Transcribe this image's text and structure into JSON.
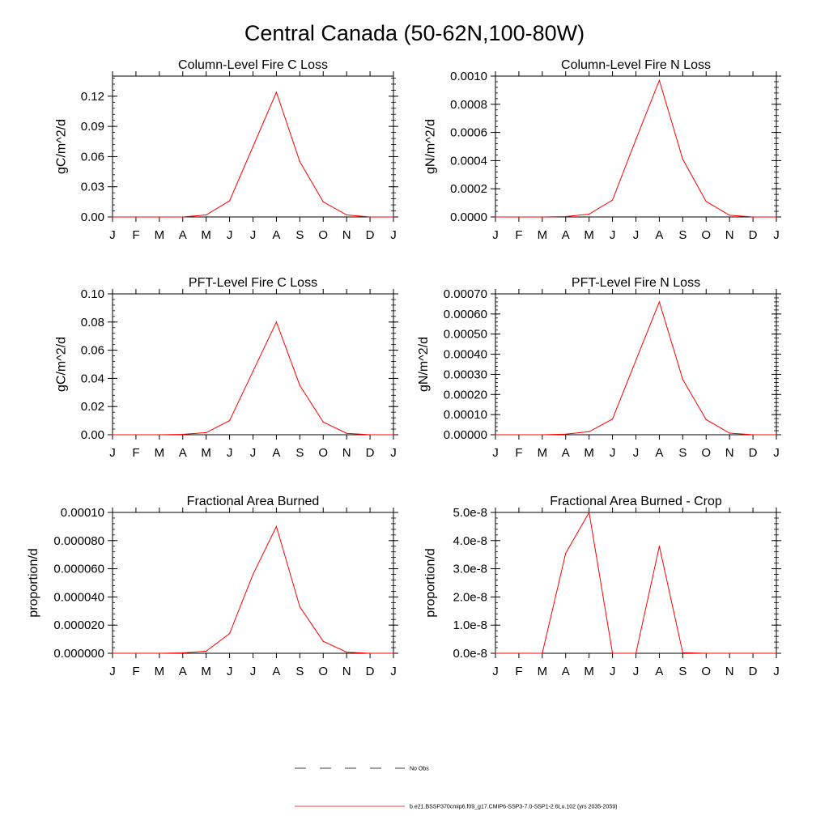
{
  "title": "Central Canada (50-62N,100-80W)",
  "months": [
    "J",
    "F",
    "M",
    "A",
    "M",
    "J",
    "J",
    "A",
    "S",
    "O",
    "N",
    "D",
    "J"
  ],
  "colors": {
    "series": "#ff0000",
    "obs": "#000000",
    "axes": "#000000"
  },
  "legend": {
    "obs_label": "No Obs",
    "model_label": "b.e21.BSSP370cmip6.f09_g17.CMIP6-SSP3-7.0-SSP1-2.6Lu.102 (yrs 2035-2059)"
  },
  "chart_data": [
    {
      "type": "line",
      "title": "Column-Level Fire C Loss",
      "ylabel": "gC/m^2/d",
      "ylim": [
        0,
        0.14
      ],
      "yticks": [
        0,
        0.03,
        0.06,
        0.09,
        0.12
      ],
      "ytick_labels": [
        "0.00",
        "0.03",
        "0.06",
        "0.09",
        "0.12"
      ],
      "yminor": 0.006,
      "series": [
        {
          "values": [
            0,
            0,
            0,
            0,
            0.002,
            0.016,
            0.07,
            0.124,
            0.055,
            0.015,
            0.002,
            0,
            0
          ]
        }
      ]
    },
    {
      "type": "line",
      "title": "Column-Level Fire N Loss",
      "ylabel": "gN/m^2/d",
      "ylim": [
        0,
        0.001
      ],
      "yticks": [
        0,
        0.0002,
        0.0004,
        0.0006,
        0.0008,
        0.001
      ],
      "ytick_labels": [
        "0.0000",
        "0.0002",
        "0.0004",
        "0.0006",
        "0.0008",
        "0.0010"
      ],
      "yminor": 4e-05,
      "series": [
        {
          "values": [
            0,
            0,
            0,
            3e-06,
            2e-05,
            0.00012,
            0.00055,
            0.00097,
            0.00041,
            0.00011,
            1.2e-05,
            0,
            0
          ]
        }
      ]
    },
    {
      "type": "line",
      "title": "PFT-Level Fire C Loss",
      "ylabel": "gC/m^2/d",
      "ylim": [
        0,
        0.1
      ],
      "yticks": [
        0,
        0.02,
        0.04,
        0.06,
        0.08,
        0.1
      ],
      "ytick_labels": [
        "0.00",
        "0.02",
        "0.04",
        "0.06",
        "0.08",
        "0.10"
      ],
      "yminor": 0.004,
      "series": [
        {
          "values": [
            0,
            0,
            0,
            0.0003,
            0.0015,
            0.01,
            0.045,
            0.08,
            0.035,
            0.009,
            0.001,
            0,
            0
          ]
        }
      ]
    },
    {
      "type": "line",
      "title": "PFT-Level Fire N Loss",
      "ylabel": "gN/m^2/d",
      "ylim": [
        0,
        0.0007
      ],
      "yticks": [
        0,
        0.0001,
        0.0002,
        0.0003,
        0.0004,
        0.0005,
        0.0006,
        0.0007
      ],
      "ytick_labels": [
        "0.00000",
        "0.00010",
        "0.00020",
        "0.00030",
        "0.00040",
        "0.00050",
        "0.00060",
        "0.00070"
      ],
      "yminor": 2e-05,
      "series": [
        {
          "values": [
            0,
            0,
            0,
            3e-06,
            1.5e-05,
            7.8e-05,
            0.00037,
            0.00066,
            0.000275,
            7.5e-05,
            8e-06,
            0,
            0
          ]
        }
      ]
    },
    {
      "type": "line",
      "title": "Fractional Area Burned",
      "ylabel": "proportion/d",
      "ylim": [
        0,
        0.0001
      ],
      "yticks": [
        0,
        2e-05,
        4e-05,
        6e-05,
        8e-05,
        0.0001
      ],
      "ytick_labels": [
        "0.000000",
        "0.000020",
        "0.000040",
        "0.000060",
        "0.000080",
        "0.00010"
      ],
      "yminor": 4e-06,
      "series": [
        {
          "values": [
            0,
            0,
            0,
            3e-07,
            1.5e-06,
            1.4e-05,
            5.6e-05,
            9e-05,
            3.3e-05,
            8.5e-06,
            8e-07,
            0,
            0
          ]
        }
      ]
    },
    {
      "type": "line",
      "title": "Fractional Area Burned - Crop",
      "ylabel": "proportion/d",
      "ylim": [
        0,
        5e-08
      ],
      "yticks": [
        0,
        1e-08,
        2e-08,
        3e-08,
        4e-08,
        5e-08
      ],
      "ytick_labels": [
        "0.0e-8",
        "1.0e-8",
        "2.0e-8",
        "3.0e-8",
        "4.0e-8",
        "5.0e-8"
      ],
      "yminor": 2e-09,
      "series": [
        {
          "values": [
            0,
            0,
            0,
            3.55e-08,
            5e-08,
            0,
            0,
            3.8e-08,
            2e-10,
            0,
            0,
            0,
            0
          ]
        }
      ]
    }
  ]
}
